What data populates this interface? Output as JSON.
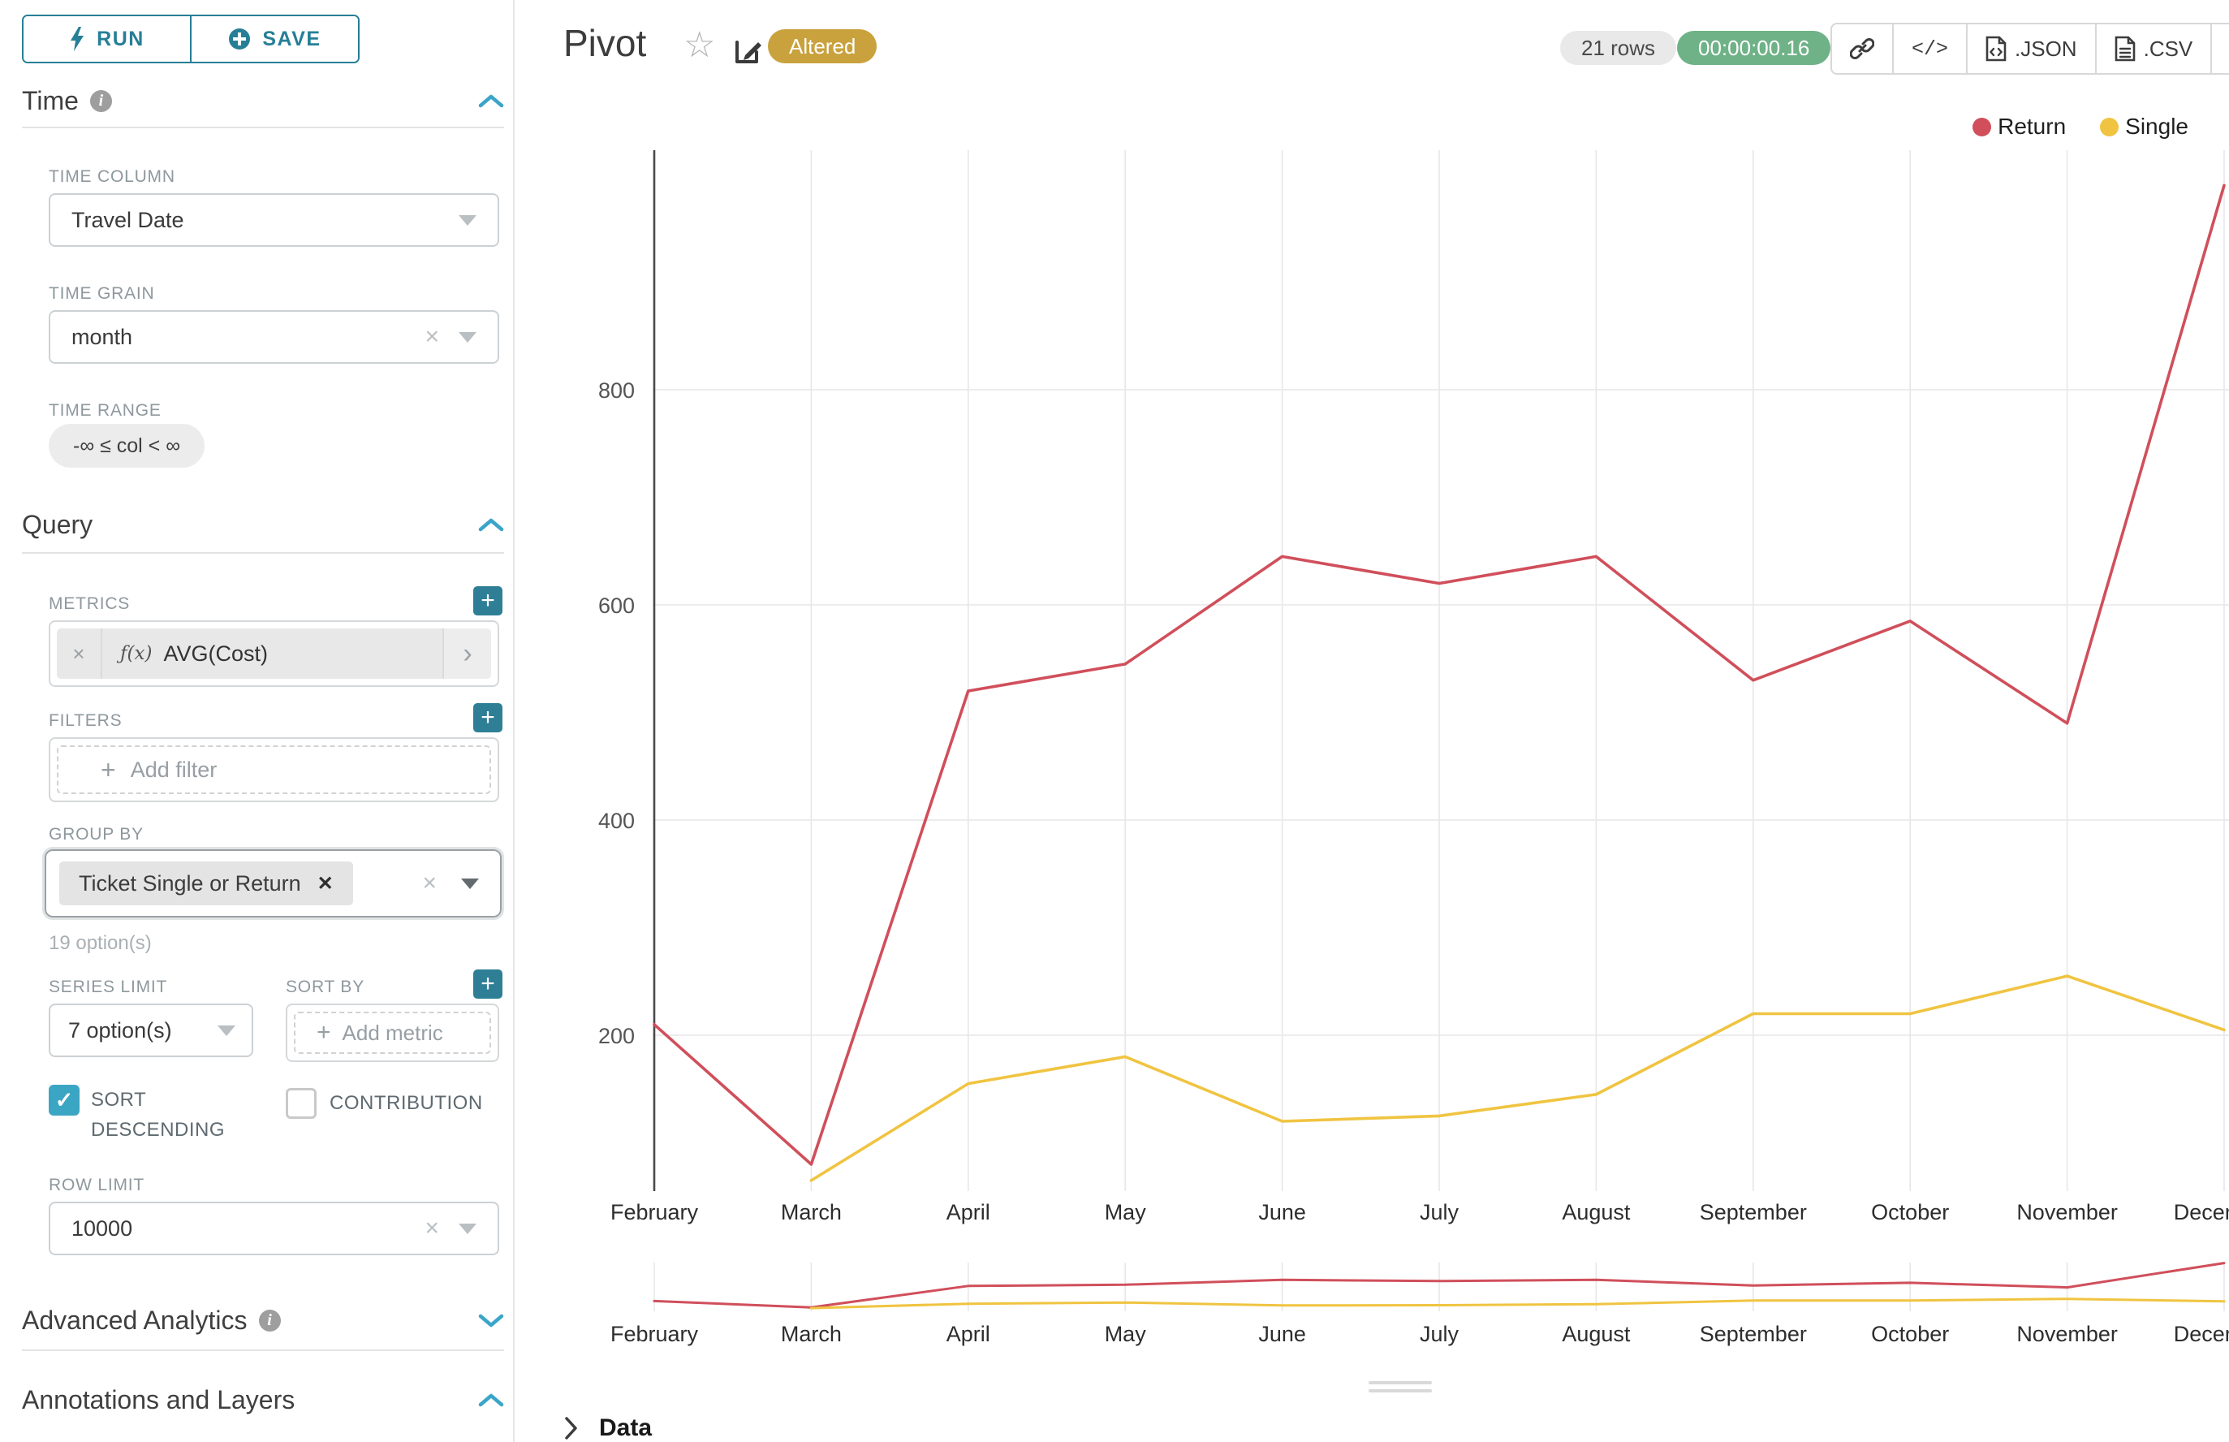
{
  "header": {
    "title": "Pivot",
    "altered_badge": "Altered",
    "rows_badge": "21 rows",
    "timer_badge": "00:00:00.16",
    "code_glyph": "</>",
    "export_json_label": ".JSON",
    "export_csv_label": ".CSV"
  },
  "sidebar": {
    "run_label": "RUN",
    "save_label": "SAVE",
    "time": {
      "title": "Time",
      "time_column_label": "TIME COLUMN",
      "time_column_value": "Travel Date",
      "time_grain_label": "TIME GRAIN",
      "time_grain_value": "month",
      "time_range_label": "TIME RANGE",
      "time_range_value": "-∞ ≤ col < ∞"
    },
    "query": {
      "title": "Query",
      "metrics_label": "METRICS",
      "metric_prefix": "ƒ(x)",
      "metric_value": "AVG(Cost)",
      "filters_label": "FILTERS",
      "add_filter_label": "Add filter",
      "group_by_label": "GROUP BY",
      "group_by_chip": "Ticket Single or Return",
      "group_by_hint": "19 option(s)",
      "series_limit_label": "SERIES LIMIT",
      "series_limit_value": "7 option(s)",
      "sort_by_label": "SORT BY",
      "add_metric_label": "Add metric",
      "sort_descending_label": "SORT DESCENDING",
      "sort_descending_checked": true,
      "contribution_label": "CONTRIBUTION",
      "contribution_checked": false,
      "row_limit_label": "ROW LIMIT",
      "row_limit_value": "10000"
    },
    "advanced_analytics_title": "Advanced Analytics",
    "annotations_title": "Annotations and Layers"
  },
  "footer": {
    "data_label": "Data"
  },
  "colors": {
    "primary_teal": "#267f96",
    "accent_teal": "#3ba5c9",
    "altered_gold": "#c9a23d",
    "timer_green": "#6fb287",
    "return_red": "#d04f5b",
    "single_yellow": "#f0c441",
    "grid_gray": "#e7e7e7",
    "axis_dark": "#4a4a4a"
  },
  "chart_data": {
    "type": "line",
    "title": "Pivot",
    "categories": [
      "February",
      "March",
      "April",
      "May",
      "June",
      "July",
      "August",
      "September",
      "October",
      "November",
      "December"
    ],
    "series": [
      {
        "name": "Return",
        "color": "#d04f5b",
        "values": [
          210,
          80,
          520,
          545,
          645,
          620,
          645,
          530,
          585,
          490,
          990
        ]
      },
      {
        "name": "Single",
        "color": "#f0c441",
        "values": [
          null,
          65,
          155,
          180,
          120,
          125,
          145,
          220,
          220,
          255,
          205
        ]
      }
    ],
    "xlabel": "",
    "ylabel": "",
    "yticks": [
      200,
      400,
      600,
      800
    ],
    "ylim": [
      40,
      1020
    ],
    "grid": true,
    "legend_position": "top-right",
    "has_brush_minichart": true
  }
}
